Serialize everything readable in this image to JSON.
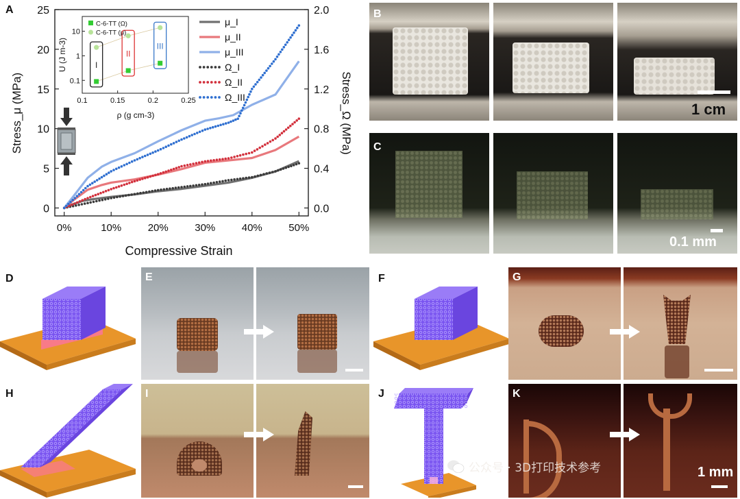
{
  "panels": {
    "A": "A",
    "B": "B",
    "C": "C",
    "D": "D",
    "E": "E",
    "F": "F",
    "G": "G",
    "H": "H",
    "I": "I",
    "J": "J",
    "K": "K"
  },
  "scale_bars": {
    "B": "1 cm",
    "C": "0.1 mm",
    "K": "1 mm"
  },
  "watermark": "公众号 · 3D打印技术参考",
  "colors": {
    "mu_I": "#707070",
    "mu_II": "#e8787c",
    "mu_III": "#8fb0e8",
    "omega_I": "#3a3a3a",
    "omega_II": "#d2303c",
    "omega_III": "#2f6fd0",
    "lattice": "#8a5cf0",
    "plate": "#e8952a"
  },
  "chart_data": [
    {
      "type": "line",
      "xlabel": "Compressive Strain",
      "ylabel": "Stress_μ (MPa)",
      "y2label": "Stress_Ω (MPa)",
      "xlim": [
        -0.02,
        0.52
      ],
      "ylim": [
        -1,
        25
      ],
      "y2lim": [
        -0.08,
        2.0
      ],
      "xticks": [
        0,
        0.1,
        0.2,
        0.3,
        0.4,
        0.5
      ],
      "xtick_labels": [
        "0%",
        "10%",
        "20%",
        "30%",
        "40%",
        "50%"
      ],
      "yticks": [
        0,
        5,
        10,
        15,
        20,
        25
      ],
      "ytick_labels": [
        "0",
        "5",
        "10",
        "15",
        "20",
        "25"
      ],
      "y2ticks": [
        0,
        0.4,
        0.8,
        1.2,
        1.6,
        2.0
      ],
      "y2tick_labels": [
        "0.0",
        "0.4",
        "0.8",
        "1.2",
        "1.6",
        "2.0"
      ],
      "legend": [
        "μ_I",
        "μ_II",
        "μ_III",
        "Ω_I",
        "Ω_II",
        "Ω_III"
      ],
      "legend_position": "top-right",
      "series": [
        {
          "name": "μ_I",
          "axis": "left",
          "style": "solid",
          "x": [
            0,
            0.02,
            0.04,
            0.06,
            0.1,
            0.15,
            0.2,
            0.25,
            0.3,
            0.35,
            0.4,
            0.45,
            0.5
          ],
          "y": [
            0,
            0.5,
            0.9,
            1.1,
            1.4,
            1.7,
            2.1,
            2.4,
            2.8,
            3.2,
            3.8,
            4.6,
            5.9
          ]
        },
        {
          "name": "μ_II",
          "axis": "left",
          "style": "solid",
          "x": [
            0,
            0.02,
            0.05,
            0.08,
            0.1,
            0.15,
            0.2,
            0.25,
            0.3,
            0.35,
            0.4,
            0.45,
            0.5
          ],
          "y": [
            0,
            1.0,
            2.3,
            2.9,
            3.2,
            3.6,
            4.2,
            4.9,
            5.7,
            6.0,
            6.3,
            7.3,
            9.0
          ]
        },
        {
          "name": "μ_III",
          "axis": "left",
          "style": "solid",
          "x": [
            0,
            0.02,
            0.05,
            0.08,
            0.1,
            0.15,
            0.2,
            0.25,
            0.3,
            0.33,
            0.36,
            0.4,
            0.45,
            0.5
          ],
          "y": [
            0,
            1.5,
            3.8,
            5.2,
            5.8,
            6.9,
            8.4,
            9.8,
            11.0,
            11.3,
            11.7,
            13.0,
            14.3,
            18.5
          ]
        },
        {
          "name": "Ω_I",
          "axis": "right",
          "style": "dotted",
          "x": [
            0,
            0.05,
            0.1,
            0.15,
            0.2,
            0.25,
            0.3,
            0.35,
            0.4,
            0.45,
            0.5
          ],
          "y": [
            0,
            0.05,
            0.1,
            0.14,
            0.18,
            0.21,
            0.24,
            0.28,
            0.31,
            0.37,
            0.45
          ]
        },
        {
          "name": "Ω_II",
          "axis": "right",
          "style": "dotted",
          "x": [
            0,
            0.05,
            0.1,
            0.15,
            0.2,
            0.25,
            0.3,
            0.35,
            0.4,
            0.45,
            0.5
          ],
          "y": [
            0,
            0.1,
            0.19,
            0.27,
            0.34,
            0.42,
            0.47,
            0.5,
            0.56,
            0.7,
            0.9
          ]
        },
        {
          "name": "Ω_III",
          "axis": "right",
          "style": "dotted",
          "x": [
            0,
            0.05,
            0.1,
            0.15,
            0.2,
            0.25,
            0.3,
            0.35,
            0.37,
            0.4,
            0.45,
            0.5
          ],
          "y": [
            0,
            0.22,
            0.37,
            0.48,
            0.58,
            0.69,
            0.79,
            0.86,
            0.9,
            1.2,
            1.5,
            1.84
          ]
        }
      ]
    },
    {
      "type": "scatter",
      "xlabel": "ρ (g cm-3)",
      "ylabel": "U (J m-3)",
      "xlim": [
        0.1,
        0.25
      ],
      "xticks": [
        0.1,
        0.15,
        0.2,
        0.25
      ],
      "xtick_labels": [
        "0.1",
        "0.15",
        "0.2",
        "0.25"
      ],
      "ylog": true,
      "ylim": [
        0.03,
        40
      ],
      "yticks": [
        0.1,
        1,
        10
      ],
      "ytick_labels": [
        "0.1",
        "1",
        "10"
      ],
      "legend": [
        "C-6-TT (Ω)",
        "C-6-TT (μ)"
      ],
      "legend_position": "top-left",
      "groups": [
        "I",
        "II",
        "III"
      ],
      "series": [
        {
          "name": "C-6-TT (Ω)",
          "marker": "square",
          "color": "#33cc33",
          "x": [
            0.12,
            0.165,
            0.21
          ],
          "y": [
            0.09,
            0.25,
            0.5
          ]
        },
        {
          "name": "C-6-TT (μ)",
          "marker": "circle",
          "color": "#b8e39a",
          "x": [
            0.12,
            0.165,
            0.21
          ],
          "y": [
            2.2,
            6.5,
            14
          ]
        }
      ]
    }
  ]
}
